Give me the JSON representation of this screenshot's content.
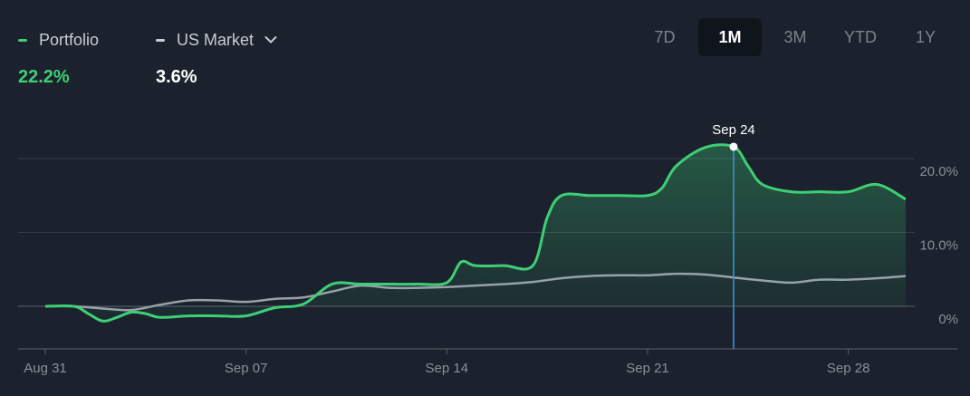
{
  "legend": {
    "portfolio": {
      "label": "Portfolio",
      "value": "22.2%",
      "color": "#3ecf76"
    },
    "market": {
      "label": "US Market",
      "value": "3.6%",
      "color": "#c9ccd1"
    }
  },
  "ranges": [
    {
      "label": "7D",
      "active": false
    },
    {
      "label": "1M",
      "active": true
    },
    {
      "label": "3M",
      "active": false
    },
    {
      "label": "YTD",
      "active": false
    },
    {
      "label": "1Y",
      "active": false
    }
  ],
  "tooltip": {
    "label": "Sep 24",
    "x": 24
  },
  "chart_data": {
    "type": "line",
    "x_tick_labels": [
      "Aug 31",
      "Sep 07",
      "Sep 14",
      "Sep 21",
      "Sep 28"
    ],
    "x_ticks": [
      0,
      7,
      14,
      21,
      28
    ],
    "xlim": [
      0,
      30
    ],
    "y_tick_labels": [
      "20.0%",
      "10.0%",
      "0%"
    ],
    "y_ticks": [
      20,
      10,
      0
    ],
    "ylim": [
      -5,
      20
    ],
    "grid": true,
    "series": [
      {
        "name": "Portfolio",
        "color": "#3ecf76",
        "fill": true,
        "x": [
          0,
          1,
          1.5,
          2,
          2.5,
          3,
          3.5,
          4,
          5,
          6,
          7,
          8,
          9,
          10,
          11,
          12,
          13,
          14,
          14.5,
          15,
          16,
          17,
          17.5,
          18,
          19,
          20,
          21,
          21.5,
          22,
          23,
          24,
          24.5,
          25,
          26,
          27,
          28,
          29,
          30
        ],
        "y": [
          0,
          0,
          -1,
          -2,
          -1.5,
          -0.8,
          -1,
          -1.5,
          -1.3,
          -1.3,
          -1.3,
          -0.2,
          0.3,
          3,
          3,
          3,
          3,
          3.2,
          6,
          5.5,
          5.5,
          5.5,
          12,
          15,
          15,
          15,
          15,
          16,
          19,
          21.5,
          21.6,
          19,
          16.5,
          15.5,
          15.5,
          15.5,
          16.5,
          14.5
        ]
      },
      {
        "name": "US Market",
        "color": "#9aa0a8",
        "fill": false,
        "x": [
          0,
          1,
          2,
          3,
          4,
          5,
          6,
          7,
          8,
          9,
          10,
          11,
          12,
          13,
          14,
          15,
          16,
          17,
          18,
          19,
          20,
          21,
          22,
          23,
          24,
          25,
          26,
          27,
          28,
          29,
          30
        ],
        "y": [
          0,
          0,
          -0.3,
          -0.5,
          0.2,
          0.8,
          0.8,
          0.6,
          1,
          1.2,
          2,
          2.8,
          2.5,
          2.5,
          2.6,
          2.8,
          3,
          3.3,
          3.8,
          4.1,
          4.2,
          4.2,
          4.4,
          4.3,
          3.9,
          3.5,
          3.2,
          3.6,
          3.6,
          3.8,
          4.1
        ]
      }
    ]
  }
}
